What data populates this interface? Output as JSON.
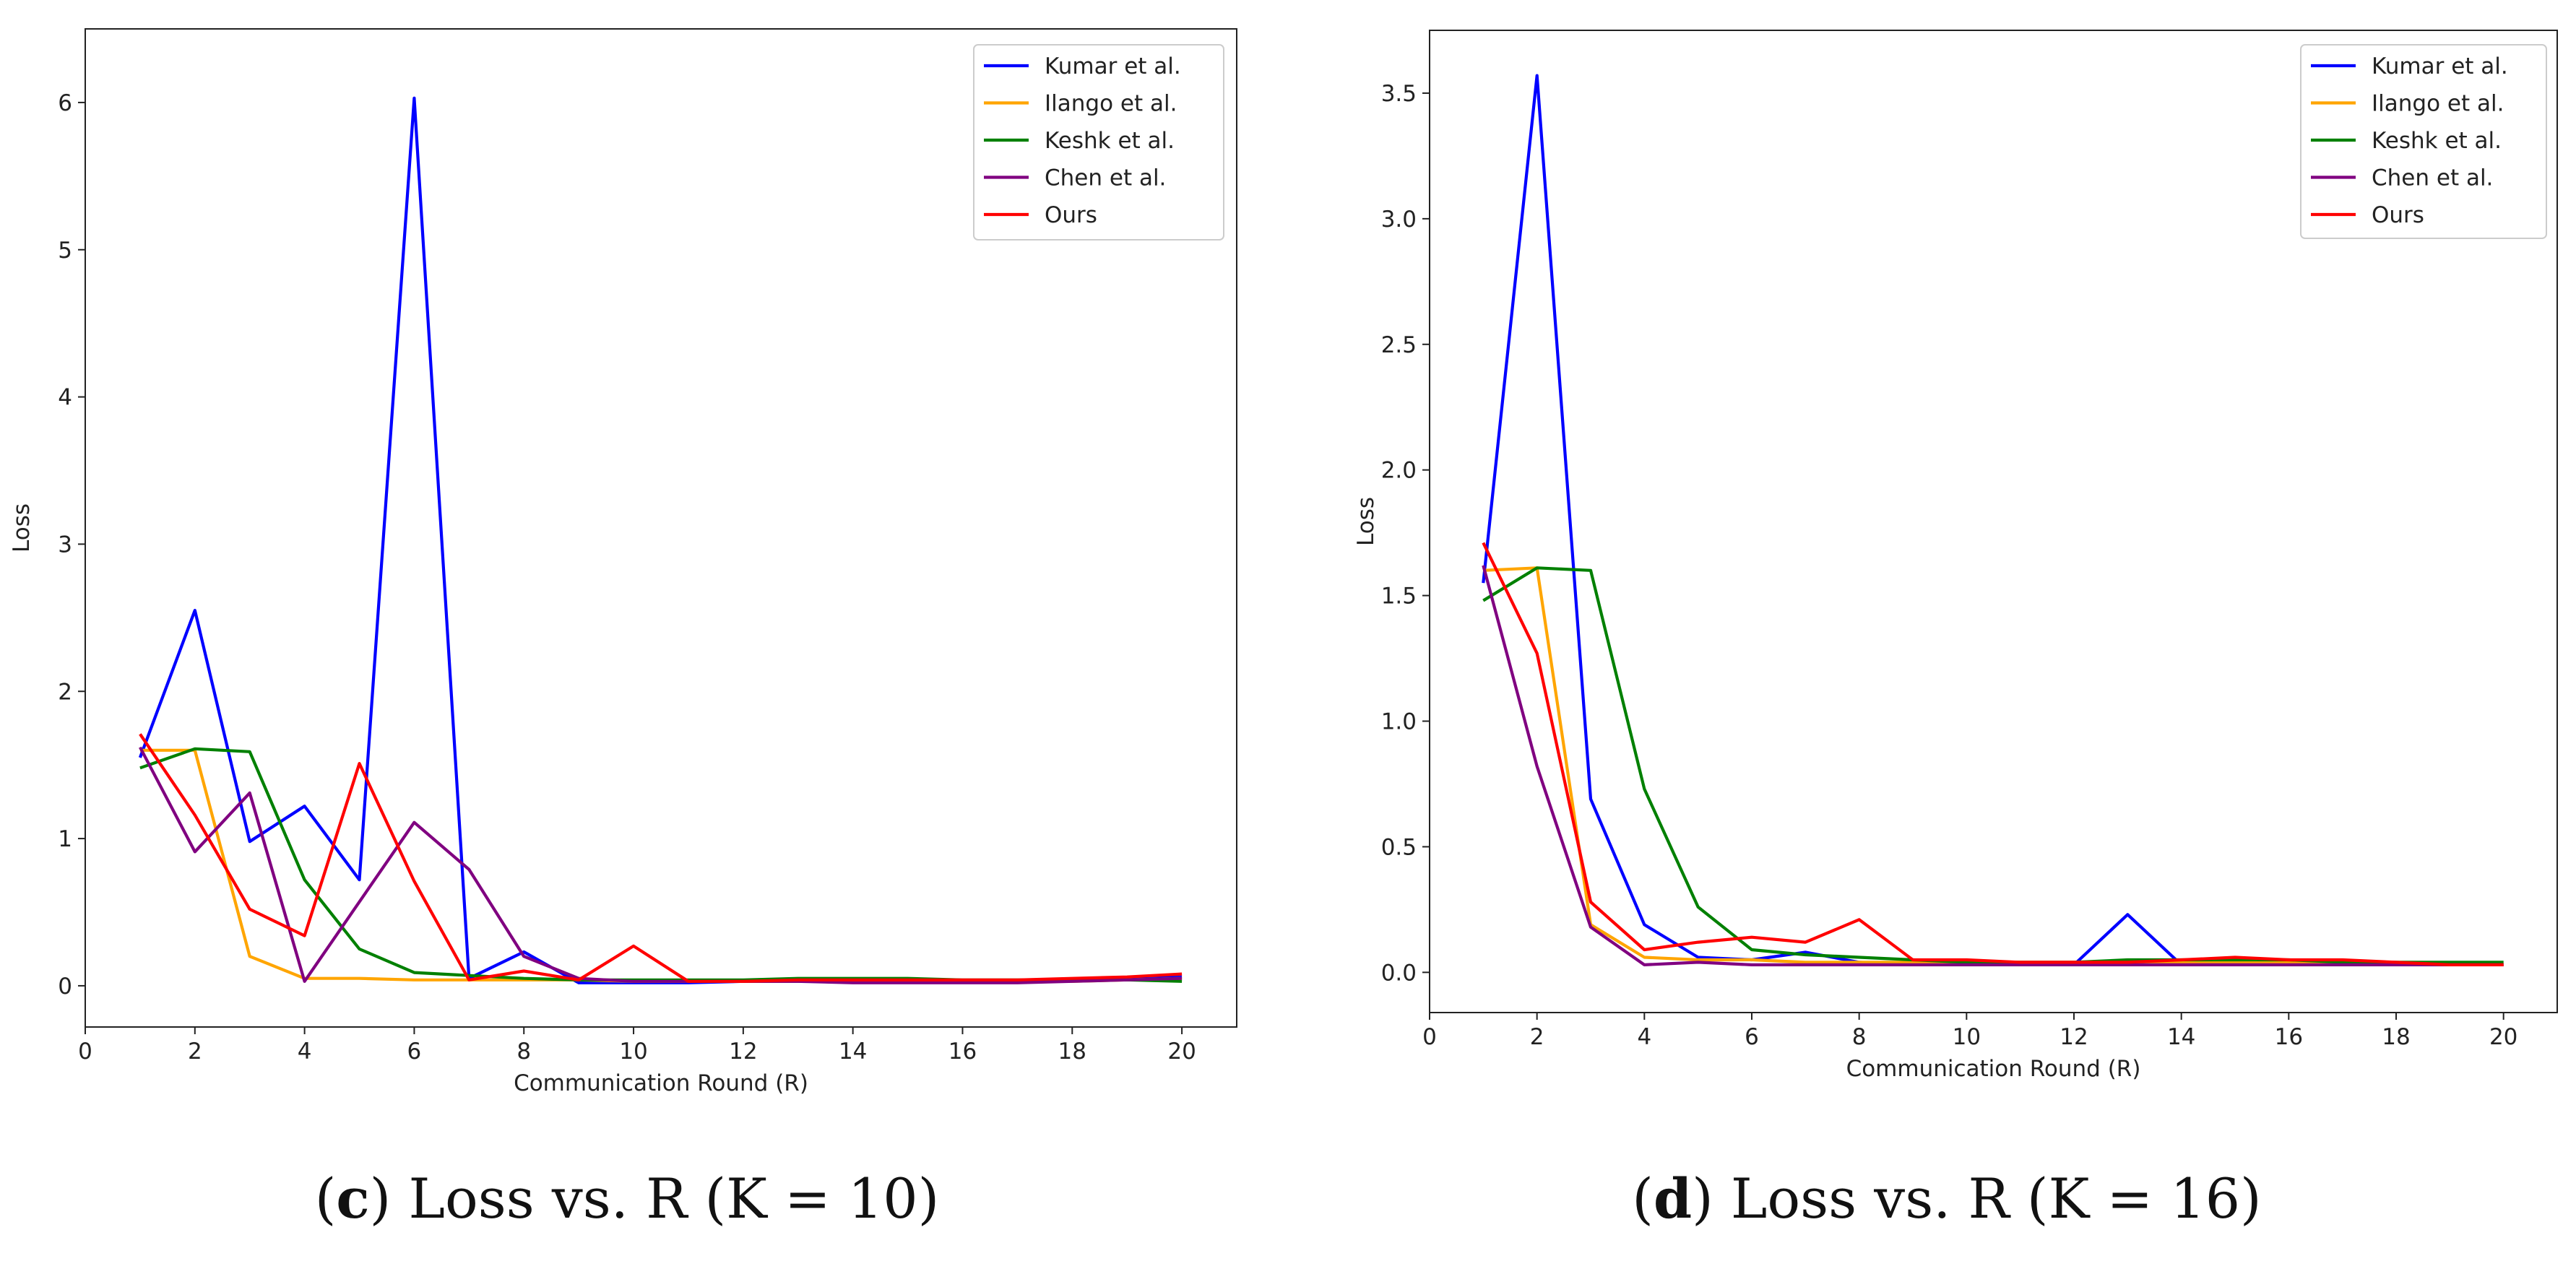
{
  "chart_data": [
    {
      "type": "line",
      "caption": {
        "letter": "c",
        "text": "Loss vs. R (K = 10)"
      },
      "xlabel": "Communication Round (R)",
      "ylabel": "Loss",
      "xlim": [
        0,
        21
      ],
      "ylim": [
        -0.28,
        6.5
      ],
      "xticks": [
        0,
        2,
        4,
        6,
        8,
        10,
        12,
        14,
        16,
        18,
        20
      ],
      "yticks": [
        0,
        1,
        2,
        3,
        4,
        5,
        6
      ],
      "legend_position": "top-right",
      "x": [
        1,
        2,
        3,
        4,
        5,
        6,
        7,
        8,
        9,
        10,
        11,
        12,
        13,
        14,
        15,
        16,
        17,
        18,
        19,
        20
      ],
      "series": [
        {
          "name": "Kumar et al.",
          "color": "#0000ff",
          "values": [
            1.55,
            2.55,
            0.98,
            1.22,
            0.72,
            6.03,
            0.05,
            0.23,
            0.02,
            0.02,
            0.02,
            0.03,
            0.03,
            0.03,
            0.03,
            0.03,
            0.03,
            0.04,
            0.05,
            0.06
          ]
        },
        {
          "name": "Ilango et al.",
          "color": "#ffa500",
          "values": [
            1.6,
            1.6,
            0.2,
            0.05,
            0.05,
            0.04,
            0.04,
            0.04,
            0.04,
            0.03,
            0.03,
            0.03,
            0.03,
            0.03,
            0.03,
            0.03,
            0.03,
            0.03,
            0.04,
            0.05
          ]
        },
        {
          "name": "Keshk et al.",
          "color": "#008000",
          "values": [
            1.48,
            1.61,
            1.59,
            0.72,
            0.25,
            0.09,
            0.07,
            0.05,
            0.04,
            0.04,
            0.04,
            0.04,
            0.05,
            0.05,
            0.05,
            0.04,
            0.04,
            0.04,
            0.04,
            0.03
          ]
        },
        {
          "name": "Chen et al.",
          "color": "#800080",
          "values": [
            1.62,
            0.91,
            1.31,
            0.03,
            0.57,
            1.11,
            0.79,
            0.2,
            0.05,
            0.03,
            0.03,
            0.03,
            0.03,
            0.02,
            0.02,
            0.02,
            0.02,
            0.03,
            0.04,
            0.05
          ]
        },
        {
          "name": "Ours",
          "color": "#ff0000",
          "values": [
            1.71,
            1.16,
            0.52,
            0.34,
            1.51,
            0.71,
            0.04,
            0.1,
            0.04,
            0.27,
            0.03,
            0.03,
            0.04,
            0.04,
            0.04,
            0.04,
            0.04,
            0.05,
            0.06,
            0.08
          ]
        }
      ]
    },
    {
      "type": "line",
      "caption": {
        "letter": "d",
        "text": "Loss vs. R (K = 16)"
      },
      "xlabel": "Communication Round (R)",
      "ylabel": "Loss",
      "xlim": [
        0,
        21
      ],
      "ylim": [
        -0.16,
        3.75
      ],
      "xticks": [
        0,
        2,
        4,
        6,
        8,
        10,
        12,
        14,
        16,
        18,
        20
      ],
      "yticks": [
        0.0,
        0.5,
        1.0,
        1.5,
        2.0,
        2.5,
        3.0,
        3.5
      ],
      "ytick_labels": [
        "0.0",
        "0.5",
        "1.0",
        "1.5",
        "2.0",
        "2.5",
        "3.0",
        "3.5"
      ],
      "legend_position": "top-right",
      "x": [
        1,
        2,
        3,
        4,
        5,
        6,
        7,
        8,
        9,
        10,
        11,
        12,
        13,
        14,
        15,
        16,
        17,
        18,
        19,
        20
      ],
      "series": [
        {
          "name": "Kumar et al.",
          "color": "#0000ff",
          "values": [
            1.55,
            3.57,
            0.69,
            0.19,
            0.06,
            0.05,
            0.08,
            0.04,
            0.03,
            0.03,
            0.03,
            0.03,
            0.23,
            0.03,
            0.03,
            0.03,
            0.03,
            0.03,
            0.03,
            0.03
          ]
        },
        {
          "name": "Ilango et al.",
          "color": "#ffa500",
          "values": [
            1.6,
            1.61,
            0.19,
            0.06,
            0.05,
            0.05,
            0.04,
            0.04,
            0.04,
            0.04,
            0.04,
            0.04,
            0.04,
            0.04,
            0.04,
            0.04,
            0.04,
            0.03,
            0.03,
            0.03
          ]
        },
        {
          "name": "Keshk et al.",
          "color": "#008000",
          "values": [
            1.48,
            1.61,
            1.6,
            0.73,
            0.26,
            0.09,
            0.07,
            0.06,
            0.05,
            0.04,
            0.04,
            0.04,
            0.05,
            0.05,
            0.05,
            0.05,
            0.04,
            0.04,
            0.04,
            0.04
          ]
        },
        {
          "name": "Chen et al.",
          "color": "#800080",
          "values": [
            1.62,
            0.82,
            0.18,
            0.03,
            0.04,
            0.03,
            0.03,
            0.03,
            0.03,
            0.03,
            0.03,
            0.03,
            0.03,
            0.03,
            0.03,
            0.03,
            0.03,
            0.03,
            0.03,
            0.03
          ]
        },
        {
          "name": "Ours",
          "color": "#ff0000",
          "values": [
            1.71,
            1.27,
            0.28,
            0.09,
            0.12,
            0.14,
            0.12,
            0.21,
            0.05,
            0.05,
            0.04,
            0.04,
            0.04,
            0.05,
            0.06,
            0.05,
            0.05,
            0.04,
            0.03,
            0.03
          ]
        }
      ]
    }
  ]
}
